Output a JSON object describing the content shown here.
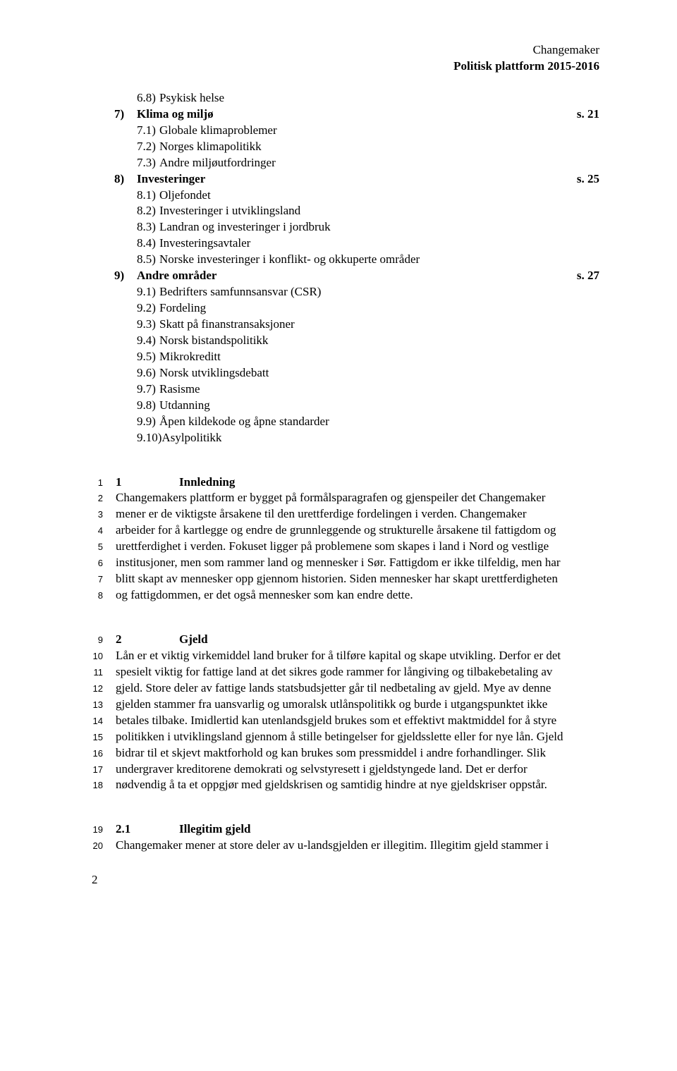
{
  "header": {
    "line1": "Changemaker",
    "line2": "Politisk plattform 2015-2016"
  },
  "toc": [
    {
      "level": 1,
      "num": "6.8)",
      "label": "Psykisk helse",
      "page": ""
    },
    {
      "level": 0,
      "num": "7)",
      "label": "Klima og miljø",
      "page": "s. 21",
      "bold": true
    },
    {
      "level": 1,
      "num": "7.1)",
      "label": "Globale klimaproblemer",
      "page": ""
    },
    {
      "level": 1,
      "num": "7.2)",
      "label": "Norges klimapolitikk",
      "page": ""
    },
    {
      "level": 1,
      "num": "7.3)",
      "label": "Andre miljøutfordringer",
      "page": ""
    },
    {
      "level": 0,
      "num": "8)",
      "label": "Investeringer",
      "page": "s. 25",
      "bold": true
    },
    {
      "level": 1,
      "num": "8.1)",
      "label": "Oljefondet",
      "page": ""
    },
    {
      "level": 1,
      "num": "8.2)",
      "label": "Investeringer i utviklingsland",
      "page": ""
    },
    {
      "level": 1,
      "num": "8.3)",
      "label": "Landran og investeringer i jordbruk",
      "page": ""
    },
    {
      "level": 1,
      "num": "8.4)",
      "label": "Investeringsavtaler",
      "page": ""
    },
    {
      "level": 1,
      "num": "8.5)",
      "label": "Norske investeringer i konflikt- og okkuperte områder",
      "page": ""
    },
    {
      "level": 0,
      "num": "9)",
      "label": "Andre områder",
      "page": "s. 27",
      "bold": true
    },
    {
      "level": 1,
      "num": "9.1)",
      "label": "Bedrifters samfunnsansvar (CSR)",
      "page": ""
    },
    {
      "level": 1,
      "num": "9.2)",
      "label": "Fordeling",
      "page": ""
    },
    {
      "level": 1,
      "num": "9.3)",
      "label": "Skatt på finanstransaksjoner",
      "page": ""
    },
    {
      "level": 1,
      "num": "9.4)",
      "label": "Norsk bistandspolitikk",
      "page": ""
    },
    {
      "level": 1,
      "num": "9.5)",
      "label": "Mikrokreditt",
      "page": ""
    },
    {
      "level": 1,
      "num": "9.6)",
      "label": "Norsk utviklingsdebatt",
      "page": ""
    },
    {
      "level": 1,
      "num": "9.7)",
      "label": "Rasisme",
      "page": ""
    },
    {
      "level": 1,
      "num": "9.8)",
      "label": "Utdanning",
      "page": ""
    },
    {
      "level": 1,
      "num": "9.9)",
      "label": "Åpen kildekode og åpne standarder",
      "page": ""
    },
    {
      "level": 1,
      "num": "9.10)",
      "label": "Asylpolitikk",
      "page": ""
    }
  ],
  "section1": {
    "head_num": "1",
    "head_label": "Innledning",
    "lines": [
      {
        "ln": "1",
        "text": "",
        "head": true
      },
      {
        "ln": "2",
        "text": "Changemakers plattform er bygget på formålsparagrafen og gjenspeiler det Changemaker"
      },
      {
        "ln": "3",
        "text": "mener er de viktigste årsakene til den urettferdige fordelingen i verden. Changemaker"
      },
      {
        "ln": "4",
        "text": "arbeider for å kartlegge og endre de grunnleggende og strukturelle årsakene til fattigdom og"
      },
      {
        "ln": "5",
        "text": "urettferdighet i verden. Fokuset ligger på problemene som skapes i land i Nord og vestlige"
      },
      {
        "ln": "6",
        "text": "institusjoner, men som rammer land og mennesker i Sør. Fattigdom er ikke tilfeldig, men har"
      },
      {
        "ln": "7",
        "text": "blitt skapt av mennesker opp gjennom historien. Siden mennesker har skapt urettferdigheten"
      },
      {
        "ln": "8",
        "text": "og fattigdommen, er det også mennesker som kan endre dette."
      }
    ]
  },
  "section2": {
    "head_num": "2",
    "head_label": "Gjeld",
    "lines": [
      {
        "ln": "9",
        "text": "",
        "head": true
      },
      {
        "ln": "10",
        "text": "Lån er et viktig virkemiddel land bruker for å tilføre kapital og skape utvikling. Derfor er det"
      },
      {
        "ln": "11",
        "text": "spesielt viktig for fattige land at det sikres gode rammer for långiving og tilbakebetaling av"
      },
      {
        "ln": "12",
        "text": "gjeld. Store deler av fattige lands statsbudsjetter går til nedbetaling av gjeld. Mye av denne"
      },
      {
        "ln": "13",
        "text": "gjelden stammer fra uansvarlig og umoralsk utlånspolitikk og burde i utgangspunktet ikke"
      },
      {
        "ln": "14",
        "text": "betales tilbake. Imidlertid kan utenlandsgjeld brukes som et effektivt maktmiddel for å styre"
      },
      {
        "ln": "15",
        "text": "politikken i utviklingsland gjennom å stille betingelser for gjeldsslette eller for nye lån. Gjeld"
      },
      {
        "ln": "16",
        "text": "bidrar til et skjevt maktforhold og kan brukes som pressmiddel i andre forhandlinger. Slik"
      },
      {
        "ln": "17",
        "text": "undergraver kreditorene demokrati og selvstyresett i gjeldstyngede land. Det er derfor"
      },
      {
        "ln": "18",
        "text": "nødvendig å ta et oppgjør med gjeldskrisen og samtidig hindre at nye gjeldskriser oppstår."
      }
    ]
  },
  "section3": {
    "head_num": "2.1",
    "head_label": "Illegitim gjeld",
    "lines": [
      {
        "ln": "19",
        "text": "",
        "head": true
      },
      {
        "ln": "20",
        "text": "Changemaker mener at store deler av u-landsgjelden er illegitim. Illegitim gjeld stammer i"
      }
    ]
  },
  "page_number": "2"
}
